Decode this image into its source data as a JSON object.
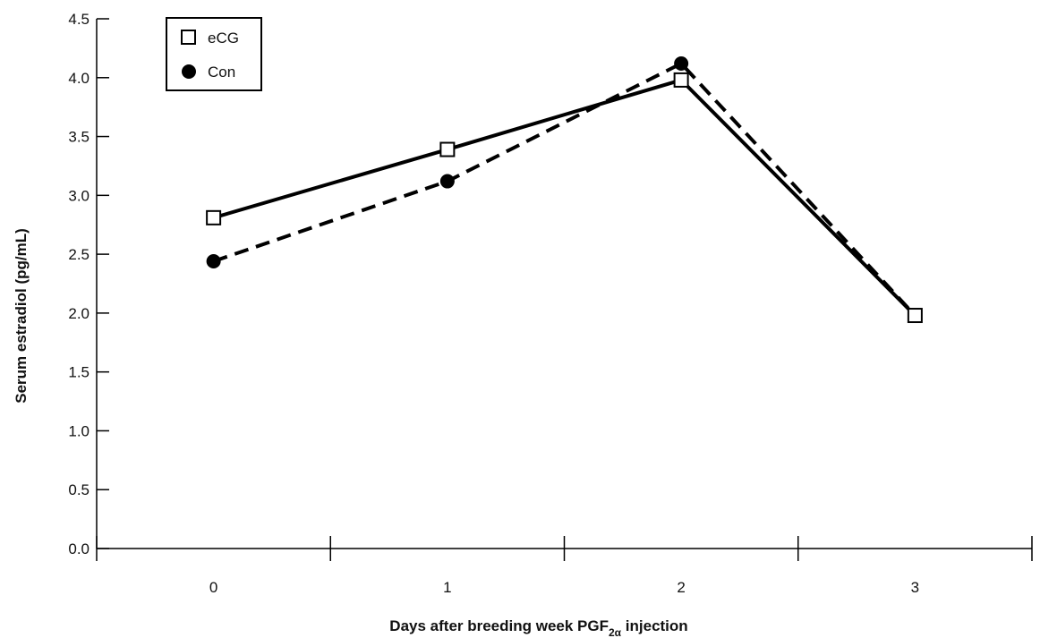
{
  "chart_data": {
    "type": "line",
    "title": "",
    "xlabel_prefix": "Days after breeding week PGF",
    "xlabel_subscript": "2α",
    "xlabel_suffix": " injection",
    "ylabel": "Serum estradiol (pg/mL)",
    "ylim": [
      0,
      4.5
    ],
    "y_ticks": [
      "0.0",
      "0.5",
      "1.0",
      "1.5",
      "2.0",
      "2.5",
      "3.0",
      "3.5",
      "4.0",
      "4.5"
    ],
    "categories": [
      "0",
      "1",
      "2",
      "3"
    ],
    "grid": false,
    "legend_position": "top-left",
    "series": [
      {
        "name": "eCG",
        "values": [
          2.81,
          3.39,
          3.98,
          1.98
        ],
        "marker": "open-square",
        "line_style": "solid",
        "color": "#000000"
      },
      {
        "name": "Con",
        "values": [
          2.44,
          3.12,
          4.12,
          1.98
        ],
        "marker": "filled-circle",
        "line_style": "dashed",
        "color": "#000000"
      }
    ]
  }
}
